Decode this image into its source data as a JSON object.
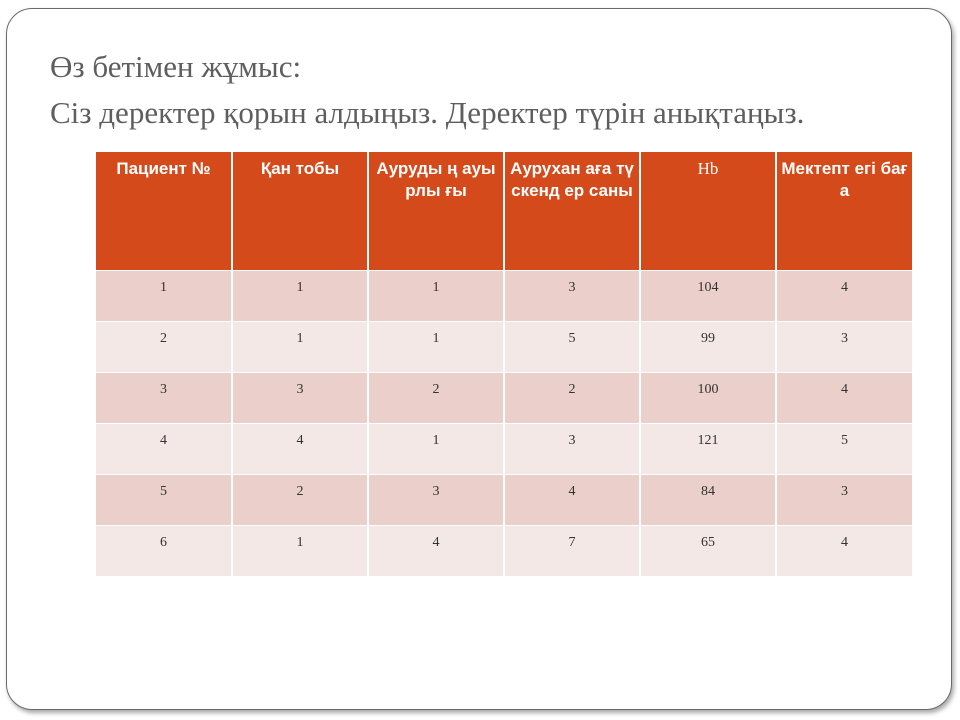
{
  "title": {
    "line1": "Өз бетімен жұмыс:",
    "line2": "Сіз деректер қорын алдыңыз. Деректер түрін анықтаңыз."
  },
  "table": {
    "headers": [
      "Пациент №",
      "Қан тобы",
      "Ауруды ң ауырлы ғы",
      "Аурухан аға түскенд ер саны",
      "Hb",
      "Мектепт егі баға"
    ],
    "rows": [
      [
        "1",
        "1",
        "1",
        "3",
        "104",
        "4"
      ],
      [
        "2",
        "1",
        "1",
        "5",
        "99",
        "3"
      ],
      [
        "3",
        "3",
        "2",
        "2",
        "100",
        "4"
      ],
      [
        "4",
        "4",
        "1",
        "3",
        "121",
        "5"
      ],
      [
        "5",
        "2",
        "3",
        "4",
        "84",
        "3"
      ],
      [
        "6",
        "1",
        "4",
        "7",
        "65",
        "4"
      ]
    ]
  },
  "colors": {
    "header_bg": "#d44a1b",
    "row_odd_bg": "#eacfcb",
    "row_even_bg": "#f4e8e6",
    "title_text": "#5e5e5e"
  }
}
